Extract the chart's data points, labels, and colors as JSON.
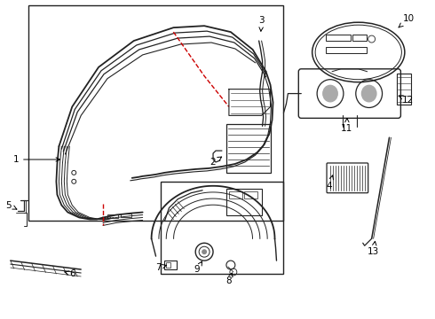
{
  "bg_color": "#ffffff",
  "lc": "#222222",
  "rc": "#cc0000",
  "figsize": [
    4.9,
    3.6
  ],
  "dpi": 100
}
